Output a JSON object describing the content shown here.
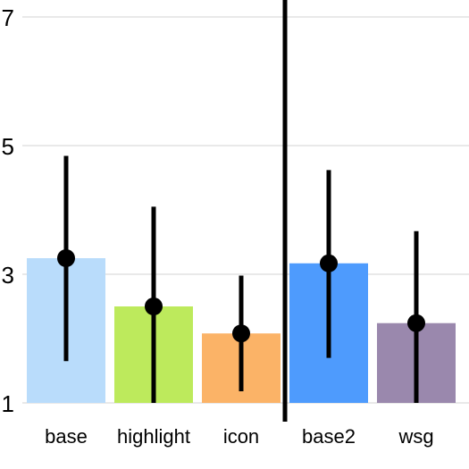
{
  "chart_data": {
    "type": "bar",
    "categories": [
      "base",
      "highlight",
      "icon",
      "base2",
      "wsg"
    ],
    "values": [
      3.25,
      2.5,
      2.08,
      3.17,
      2.24
    ],
    "error_low": [
      1.65,
      1.0,
      1.18,
      1.7,
      1.0
    ],
    "error_high": [
      4.84,
      4.05,
      2.98,
      4.62,
      3.67
    ],
    "colors": [
      "#b9dcfb",
      "#bdea5c",
      "#fbb367",
      "#4e9bfd",
      "#9a88ad"
    ],
    "ylim": [
      1,
      7.3
    ],
    "yticks": [
      {
        "value": 1,
        "label": "1"
      },
      {
        "value": 3,
        "label": "3"
      },
      {
        "value": 5,
        "label": "5"
      },
      {
        "value": 7,
        "label": "7"
      }
    ],
    "separator_after_index": 2,
    "grid": true,
    "title": "",
    "xlabel": "",
    "ylabel": ""
  }
}
